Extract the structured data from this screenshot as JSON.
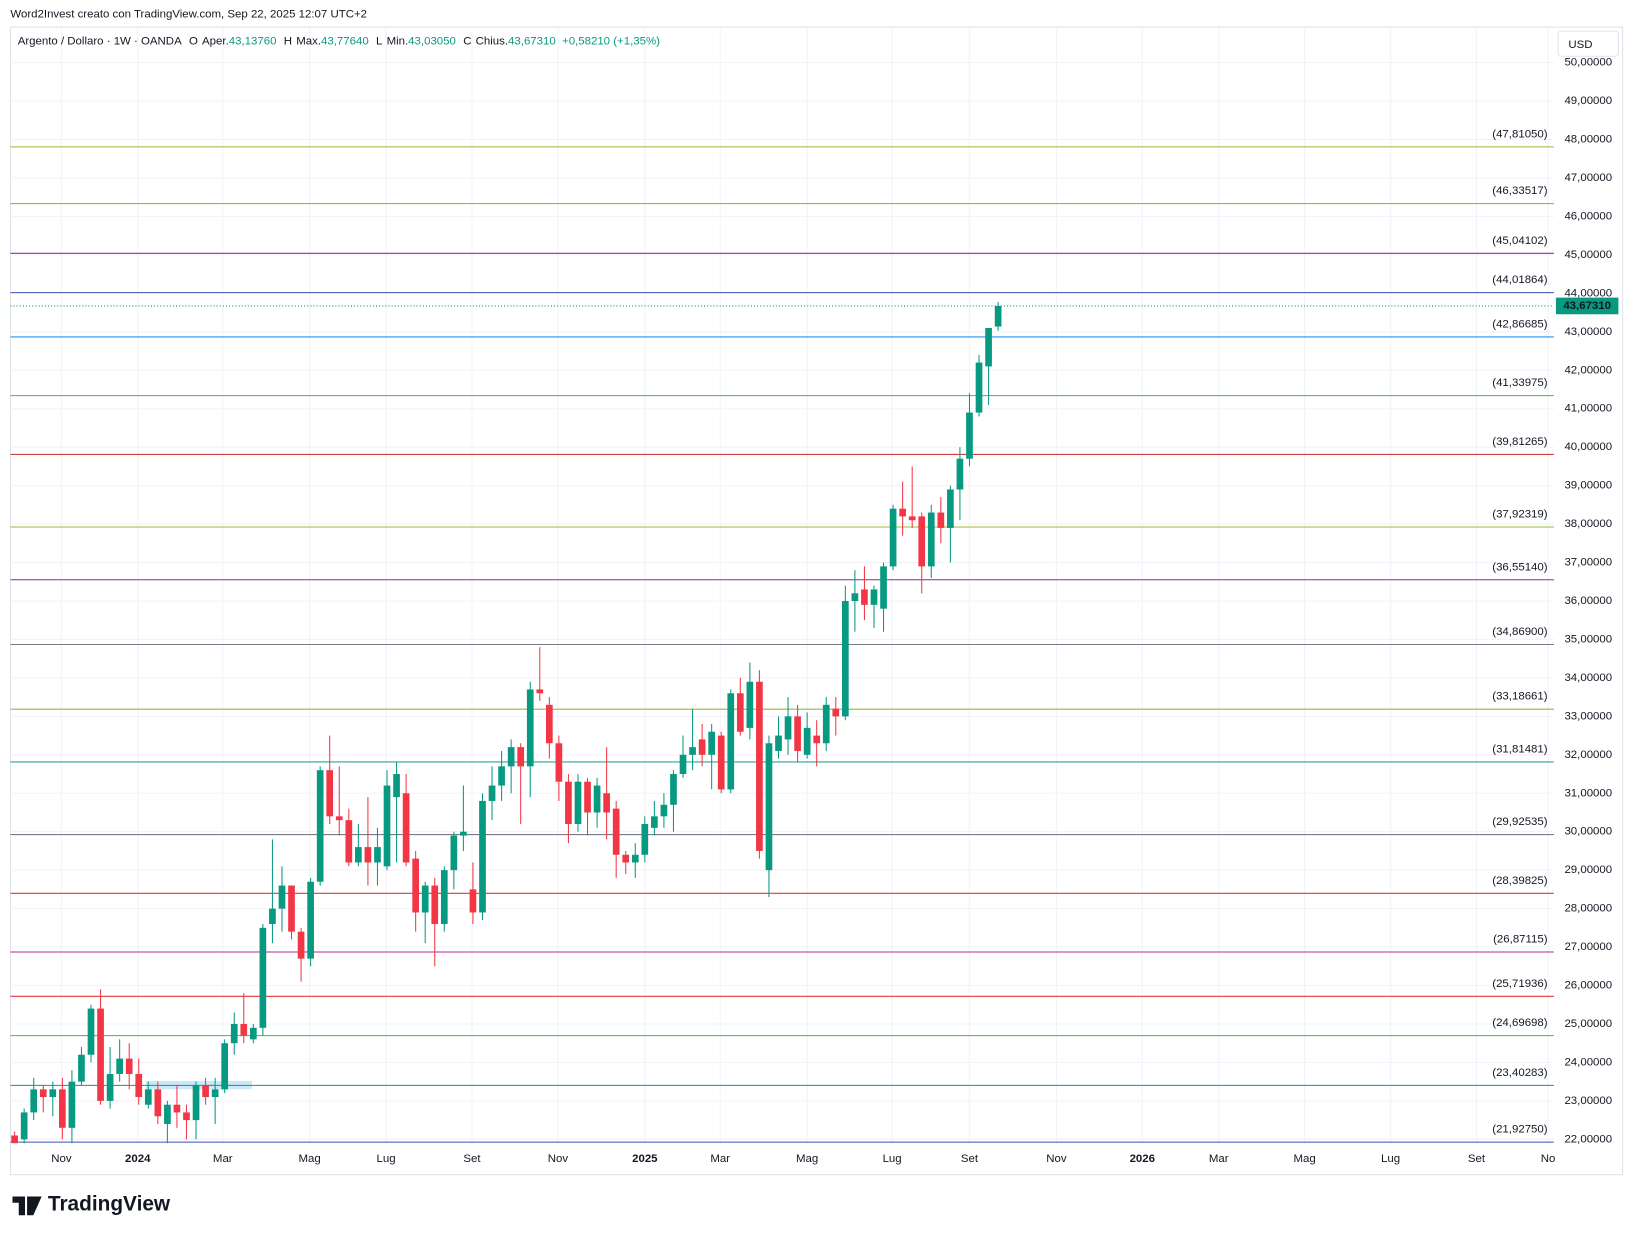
{
  "header": {
    "credit": "Word2Invest creato con TradingView.com, Sep 22, 2025 12:07 UTC+2",
    "brand": "TradingView"
  },
  "chart_data": {
    "type": "candlestick",
    "legend": {
      "symbol": "Argento / Dollaro · 1W · OANDA",
      "fields": [
        {
          "key": "O",
          "name": "Aper.",
          "value": "43,13760"
        },
        {
          "key": "H",
          "name": "Max.",
          "value": "43,77640"
        },
        {
          "key": "L",
          "name": "Min.",
          "value": "43,03050"
        },
        {
          "key": "C",
          "name": "Chius.",
          "value": "43,67310"
        }
      ],
      "change": "+0,58210 (+1,35%)"
    },
    "currency": "USD",
    "up_color": "#089981",
    "down_color": "#f23645",
    "xlim": [
      -0.44,
      161.2
    ],
    "ylim": [
      21.84,
      49.95
    ],
    "xticks": [
      {
        "value": 4.9,
        "label": "Nov"
      },
      {
        "value": 12.9,
        "label": "2024"
      },
      {
        "value": 21.8,
        "label": "Mar"
      },
      {
        "value": 30.9,
        "label": "Mag"
      },
      {
        "value": 38.9,
        "label": "Lug"
      },
      {
        "value": 47.9,
        "label": "Set"
      },
      {
        "value": 56.9,
        "label": "Nov"
      },
      {
        "value": 66.0,
        "label": "2025"
      },
      {
        "value": 73.9,
        "label": "Mar"
      },
      {
        "value": 83.0,
        "label": "Mag"
      },
      {
        "value": 91.9,
        "label": "Lug"
      },
      {
        "value": 100.0,
        "label": "Set"
      },
      {
        "value": 109.1,
        "label": "Nov"
      },
      {
        "value": 118.1,
        "label": "2026"
      },
      {
        "value": 126.1,
        "label": "Mar"
      },
      {
        "value": 135.1,
        "label": "Mag"
      },
      {
        "value": 144.1,
        "label": "Lug"
      },
      {
        "value": 153.1,
        "label": "Set"
      },
      {
        "value": 160.6,
        "label": "No"
      }
    ],
    "yticks": [
      {
        "value": 22,
        "label": "22,00000"
      },
      {
        "value": 23,
        "label": "23,00000"
      },
      {
        "value": 24,
        "label": "24,00000"
      },
      {
        "value": 25,
        "label": "25,00000"
      },
      {
        "value": 26,
        "label": "26,00000"
      },
      {
        "value": 27,
        "label": "27,00000"
      },
      {
        "value": 28,
        "label": "28,00000"
      },
      {
        "value": 29,
        "label": "29,00000"
      },
      {
        "value": 30,
        "label": "30,00000"
      },
      {
        "value": 31,
        "label": "31,00000"
      },
      {
        "value": 32,
        "label": "32,00000"
      },
      {
        "value": 33,
        "label": "33,00000"
      },
      {
        "value": 34,
        "label": "34,00000"
      },
      {
        "value": 35,
        "label": "35,00000"
      },
      {
        "value": 36,
        "label": "36,00000"
      },
      {
        "value": 37,
        "label": "37,00000"
      },
      {
        "value": 38,
        "label": "38,00000"
      },
      {
        "value": 39,
        "label": "39,00000"
      },
      {
        "value": 40,
        "label": "40,00000"
      },
      {
        "value": 41,
        "label": "41,00000"
      },
      {
        "value": 42,
        "label": "42,00000"
      },
      {
        "value": 43,
        "label": "43,00000"
      },
      {
        "value": 44,
        "label": "44,00000"
      },
      {
        "value": 45,
        "label": "45,00000"
      },
      {
        "value": 46,
        "label": "46,00000"
      },
      {
        "value": 47,
        "label": "47,00000"
      },
      {
        "value": 48,
        "label": "48,00000"
      },
      {
        "value": 49,
        "label": "49,00000"
      },
      {
        "value": 50,
        "label": "50,00000"
      }
    ],
    "grid": true,
    "last_price": {
      "value": 43.6731,
      "label": "43,67310"
    },
    "levels": [
      {
        "value": 47.8105,
        "label": "(47,81050)",
        "color": "#9ab83c"
      },
      {
        "value": 46.33517,
        "label": "(46,33517)",
        "color": "#9ab83c"
      },
      {
        "value": 45.04102,
        "label": "(45,04102)",
        "color": "#9c27b0"
      },
      {
        "value": 44.01864,
        "label": "(44,01864)",
        "color": "#3f51b5"
      },
      {
        "value": 42.86685,
        "label": "(42,86685)",
        "color": "#2196f3"
      },
      {
        "value": 41.33975,
        "label": "(41,33975)",
        "color": "#4caf50"
      },
      {
        "value": 39.81265,
        "label": "(39,81265)",
        "color": "#c62828"
      },
      {
        "value": 37.92319,
        "label": "(37,92319)",
        "color": "#9ab83c"
      },
      {
        "value": 36.5514,
        "label": "(36,55140)",
        "color": "#8e24aa"
      },
      {
        "value": 34.869,
        "label": "(34,86900)",
        "color": "#787b86"
      },
      {
        "value": 33.18661,
        "label": "(33,18661)",
        "color": "#9ab83c"
      },
      {
        "value": 31.81481,
        "label": "(31,81481)",
        "color": "#26a69a"
      },
      {
        "value": 29.92535,
        "label": "(29,92535)",
        "color": "#787b86"
      },
      {
        "value": 28.39825,
        "label": "(28,39825)",
        "color": "#e53935"
      },
      {
        "value": 26.87115,
        "label": "(26,87115)",
        "color": "#b52a8f"
      },
      {
        "value": 25.71936,
        "label": "(25,71936)",
        "color": "#e53935"
      },
      {
        "value": 24.69698,
        "label": "(24,69698)",
        "color": "#4caf50"
      },
      {
        "value": 23.40283,
        "label": "(23,40283)",
        "color": "#1e88a8"
      },
      {
        "value": 21.9275,
        "label": "(21,92750)",
        "color": "#3f51b5"
      }
    ],
    "candles": [
      {
        "open": 22.1,
        "high": 22.2,
        "low": 21.9,
        "close": 21.9
      },
      {
        "open": 22.0,
        "high": 22.8,
        "low": 21.9,
        "close": 22.7
      },
      {
        "open": 22.7,
        "high": 23.6,
        "low": 22.5,
        "close": 23.3
      },
      {
        "open": 23.3,
        "high": 23.4,
        "low": 22.7,
        "close": 23.1
      },
      {
        "open": 23.1,
        "high": 23.5,
        "low": 22.6,
        "close": 23.3
      },
      {
        "open": 23.3,
        "high": 23.6,
        "low": 22.0,
        "close": 22.3
      },
      {
        "open": 22.3,
        "high": 23.8,
        "low": 21.9,
        "close": 23.5
      },
      {
        "open": 23.5,
        "high": 24.4,
        "low": 23.4,
        "close": 24.2
      },
      {
        "open": 24.2,
        "high": 25.5,
        "low": 24.0,
        "close": 25.4
      },
      {
        "open": 25.4,
        "high": 25.9,
        "low": 22.9,
        "close": 23.0
      },
      {
        "open": 23.0,
        "high": 24.4,
        "low": 22.8,
        "close": 23.7
      },
      {
        "open": 23.7,
        "high": 24.6,
        "low": 23.5,
        "close": 24.1
      },
      {
        "open": 24.1,
        "high": 24.5,
        "low": 23.3,
        "close": 23.7
      },
      {
        "open": 23.7,
        "high": 24.1,
        "low": 22.9,
        "close": 23.1
      },
      {
        "open": 22.9,
        "high": 23.5,
        "low": 22.8,
        "close": 23.3
      },
      {
        "open": 23.3,
        "high": 23.5,
        "low": 22.4,
        "close": 22.6
      },
      {
        "open": 22.4,
        "high": 23.0,
        "low": 21.9,
        "close": 22.9
      },
      {
        "open": 22.9,
        "high": 23.4,
        "low": 22.3,
        "close": 22.7
      },
      {
        "open": 22.7,
        "high": 22.9,
        "low": 22.0,
        "close": 22.5
      },
      {
        "open": 22.5,
        "high": 23.5,
        "low": 22.0,
        "close": 23.4
      },
      {
        "open": 23.4,
        "high": 23.6,
        "low": 22.9,
        "close": 23.1
      },
      {
        "open": 23.1,
        "high": 23.6,
        "low": 22.4,
        "close": 23.3
      },
      {
        "open": 23.3,
        "high": 24.6,
        "low": 23.2,
        "close": 24.5
      },
      {
        "open": 24.5,
        "high": 25.3,
        "low": 24.2,
        "close": 25.0
      },
      {
        "open": 25.0,
        "high": 25.8,
        "low": 24.5,
        "close": 24.7
      },
      {
        "open": 24.6,
        "high": 25.0,
        "low": 24.5,
        "close": 24.9
      },
      {
        "open": 24.9,
        "high": 27.6,
        "low": 24.7,
        "close": 27.5
      },
      {
        "open": 27.6,
        "high": 29.8,
        "low": 27.1,
        "close": 28.0
      },
      {
        "open": 28.0,
        "high": 29.1,
        "low": 27.4,
        "close": 28.6
      },
      {
        "open": 28.6,
        "high": 28.6,
        "low": 27.2,
        "close": 27.4
      },
      {
        "open": 27.4,
        "high": 27.5,
        "low": 26.1,
        "close": 26.7
      },
      {
        "open": 26.7,
        "high": 28.8,
        "low": 26.5,
        "close": 28.7
      },
      {
        "open": 28.7,
        "high": 31.7,
        "low": 28.6,
        "close": 31.6
      },
      {
        "open": 31.6,
        "high": 32.5,
        "low": 30.2,
        "close": 30.4
      },
      {
        "open": 30.4,
        "high": 31.7,
        "low": 29.9,
        "close": 30.3
      },
      {
        "open": 30.3,
        "high": 30.6,
        "low": 29.1,
        "close": 29.2
      },
      {
        "open": 29.2,
        "high": 30.2,
        "low": 29.1,
        "close": 29.6
      },
      {
        "open": 29.6,
        "high": 30.9,
        "low": 28.6,
        "close": 29.2
      },
      {
        "open": 29.2,
        "high": 30.1,
        "low": 28.6,
        "close": 29.6
      },
      {
        "open": 29.1,
        "high": 31.6,
        "low": 29.0,
        "close": 31.2
      },
      {
        "open": 30.9,
        "high": 31.8,
        "low": 29.2,
        "close": 31.5
      },
      {
        "open": 31.0,
        "high": 31.5,
        "low": 29.1,
        "close": 29.2
      },
      {
        "open": 29.3,
        "high": 29.5,
        "low": 27.4,
        "close": 27.9
      },
      {
        "open": 27.9,
        "high": 28.7,
        "low": 27.1,
        "close": 28.6
      },
      {
        "open": 28.6,
        "high": 28.8,
        "low": 26.5,
        "close": 27.6
      },
      {
        "open": 27.6,
        "high": 29.1,
        "low": 27.4,
        "close": 29.0
      },
      {
        "open": 29.0,
        "high": 30.0,
        "low": 28.5,
        "close": 29.9
      },
      {
        "open": 29.9,
        "high": 31.2,
        "low": 29.5,
        "close": 30.0
      },
      {
        "open": 28.5,
        "high": 29.2,
        "low": 27.6,
        "close": 27.9
      },
      {
        "open": 27.9,
        "high": 31.0,
        "low": 27.7,
        "close": 30.8
      },
      {
        "open": 30.8,
        "high": 31.7,
        "low": 30.3,
        "close": 31.2
      },
      {
        "open": 31.2,
        "high": 32.1,
        "low": 30.8,
        "close": 31.7
      },
      {
        "open": 31.7,
        "high": 32.4,
        "low": 31.0,
        "close": 32.2
      },
      {
        "open": 32.2,
        "high": 32.3,
        "low": 30.2,
        "close": 31.7
      },
      {
        "open": 31.7,
        "high": 33.9,
        "low": 30.9,
        "close": 33.7
      },
      {
        "open": 33.7,
        "high": 34.8,
        "low": 33.4,
        "close": 33.6
      },
      {
        "open": 33.3,
        "high": 33.5,
        "low": 31.9,
        "close": 32.3
      },
      {
        "open": 32.3,
        "high": 32.5,
        "low": 30.8,
        "close": 31.3
      },
      {
        "open": 31.3,
        "high": 31.5,
        "low": 29.7,
        "close": 30.2
      },
      {
        "open": 30.2,
        "high": 31.5,
        "low": 30.0,
        "close": 31.3
      },
      {
        "open": 31.3,
        "high": 31.4,
        "low": 29.9,
        "close": 30.5
      },
      {
        "open": 30.5,
        "high": 31.4,
        "low": 30.1,
        "close": 31.2
      },
      {
        "open": 31.0,
        "high": 32.2,
        "low": 29.8,
        "close": 30.5
      },
      {
        "open": 30.6,
        "high": 30.8,
        "low": 28.8,
        "close": 29.4
      },
      {
        "open": 29.4,
        "high": 29.5,
        "low": 28.9,
        "close": 29.2
      },
      {
        "open": 29.2,
        "high": 29.7,
        "low": 28.8,
        "close": 29.4
      },
      {
        "open": 29.4,
        "high": 30.4,
        "low": 29.2,
        "close": 30.2
      },
      {
        "open": 30.1,
        "high": 30.8,
        "low": 29.9,
        "close": 30.4
      },
      {
        "open": 30.4,
        "high": 31.0,
        "low": 30.1,
        "close": 30.7
      },
      {
        "open": 30.7,
        "high": 31.6,
        "low": 30.0,
        "close": 31.5
      },
      {
        "open": 31.5,
        "high": 32.5,
        "low": 31.4,
        "close": 32.0
      },
      {
        "open": 32.0,
        "high": 33.2,
        "low": 31.6,
        "close": 32.2
      },
      {
        "open": 32.4,
        "high": 32.8,
        "low": 31.7,
        "close": 32.0
      },
      {
        "open": 32.0,
        "high": 32.8,
        "low": 31.1,
        "close": 32.6
      },
      {
        "open": 32.5,
        "high": 32.6,
        "low": 31.0,
        "close": 31.1
      },
      {
        "open": 31.1,
        "high": 33.7,
        "low": 31.0,
        "close": 33.6
      },
      {
        "open": 33.6,
        "high": 34.0,
        "low": 32.5,
        "close": 32.6
      },
      {
        "open": 32.7,
        "high": 34.4,
        "low": 32.4,
        "close": 33.9
      },
      {
        "open": 33.9,
        "high": 34.2,
        "low": 29.3,
        "close": 29.5
      },
      {
        "open": 29.0,
        "high": 32.5,
        "low": 28.3,
        "close": 32.3
      },
      {
        "open": 32.1,
        "high": 33.0,
        "low": 31.9,
        "close": 32.5
      },
      {
        "open": 32.4,
        "high": 33.5,
        "low": 32.0,
        "close": 33.0
      },
      {
        "open": 33.0,
        "high": 33.3,
        "low": 31.8,
        "close": 32.1
      },
      {
        "open": 32.0,
        "high": 33.1,
        "low": 31.9,
        "close": 32.7
      },
      {
        "open": 32.5,
        "high": 32.9,
        "low": 31.7,
        "close": 32.3
      },
      {
        "open": 32.3,
        "high": 33.5,
        "low": 32.1,
        "close": 33.3
      },
      {
        "open": 33.2,
        "high": 33.5,
        "low": 32.5,
        "close": 33.0
      },
      {
        "open": 33.0,
        "high": 36.4,
        "low": 32.9,
        "close": 36.0
      },
      {
        "open": 36.0,
        "high": 36.8,
        "low": 35.2,
        "close": 36.2
      },
      {
        "open": 36.3,
        "high": 36.9,
        "low": 35.5,
        "close": 35.9
      },
      {
        "open": 35.9,
        "high": 36.4,
        "low": 35.3,
        "close": 36.3
      },
      {
        "open": 35.8,
        "high": 37.0,
        "low": 35.2,
        "close": 36.9
      },
      {
        "open": 36.9,
        "high": 38.5,
        "low": 36.8,
        "close": 38.4
      },
      {
        "open": 38.4,
        "high": 39.1,
        "low": 37.7,
        "close": 38.2
      },
      {
        "open": 38.2,
        "high": 39.5,
        "low": 37.9,
        "close": 38.1
      },
      {
        "open": 38.2,
        "high": 38.3,
        "low": 36.2,
        "close": 36.9
      },
      {
        "open": 36.9,
        "high": 38.5,
        "low": 36.6,
        "close": 38.3
      },
      {
        "open": 38.3,
        "high": 38.7,
        "low": 37.5,
        "close": 37.9
      },
      {
        "open": 37.9,
        "high": 39.0,
        "low": 37.0,
        "close": 38.9
      },
      {
        "open": 38.9,
        "high": 40.0,
        "low": 38.1,
        "close": 39.7
      },
      {
        "open": 39.7,
        "high": 41.4,
        "low": 39.5,
        "close": 40.9
      },
      {
        "open": 40.9,
        "high": 42.4,
        "low": 40.8,
        "close": 42.2
      },
      {
        "open": 42.1,
        "high": 43.1,
        "low": 41.1,
        "close": 43.1
      },
      {
        "open": 43.1376,
        "high": 43.7764,
        "low": 43.0305,
        "close": 43.6731
      }
    ]
  }
}
